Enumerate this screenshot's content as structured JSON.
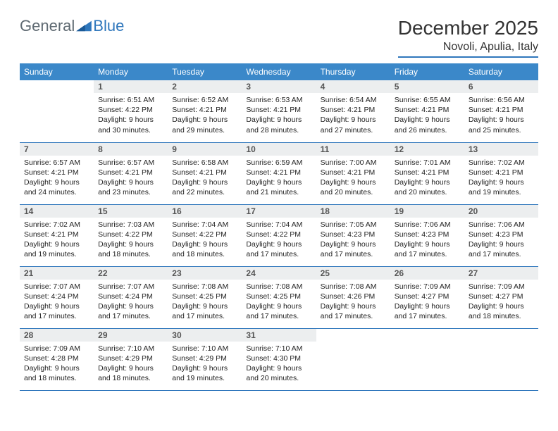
{
  "brand": {
    "part1": "General",
    "part2": "Blue"
  },
  "title": "December 2025",
  "location": "Novoli, Apulia, Italy",
  "colors": {
    "header_bg": "#3b88c9",
    "rule": "#2f77bc",
    "daynum_bg": "#eceeef",
    "text": "#222222",
    "title_color": "#333333",
    "brand_gray": "#5f6a72",
    "brand_blue": "#2f77bc"
  },
  "weekdays": [
    "Sunday",
    "Monday",
    "Tuesday",
    "Wednesday",
    "Thursday",
    "Friday",
    "Saturday"
  ],
  "layout": {
    "first_weekday_index": 1,
    "days_in_month": 31,
    "rows": 5,
    "cols": 7
  },
  "days": {
    "1": {
      "sunrise": "6:51 AM",
      "sunset": "4:22 PM",
      "daylight": "9 hours and 30 minutes."
    },
    "2": {
      "sunrise": "6:52 AM",
      "sunset": "4:21 PM",
      "daylight": "9 hours and 29 minutes."
    },
    "3": {
      "sunrise": "6:53 AM",
      "sunset": "4:21 PM",
      "daylight": "9 hours and 28 minutes."
    },
    "4": {
      "sunrise": "6:54 AM",
      "sunset": "4:21 PM",
      "daylight": "9 hours and 27 minutes."
    },
    "5": {
      "sunrise": "6:55 AM",
      "sunset": "4:21 PM",
      "daylight": "9 hours and 26 minutes."
    },
    "6": {
      "sunrise": "6:56 AM",
      "sunset": "4:21 PM",
      "daylight": "9 hours and 25 minutes."
    },
    "7": {
      "sunrise": "6:57 AM",
      "sunset": "4:21 PM",
      "daylight": "9 hours and 24 minutes."
    },
    "8": {
      "sunrise": "6:57 AM",
      "sunset": "4:21 PM",
      "daylight": "9 hours and 23 minutes."
    },
    "9": {
      "sunrise": "6:58 AM",
      "sunset": "4:21 PM",
      "daylight": "9 hours and 22 minutes."
    },
    "10": {
      "sunrise": "6:59 AM",
      "sunset": "4:21 PM",
      "daylight": "9 hours and 21 minutes."
    },
    "11": {
      "sunrise": "7:00 AM",
      "sunset": "4:21 PM",
      "daylight": "9 hours and 20 minutes."
    },
    "12": {
      "sunrise": "7:01 AM",
      "sunset": "4:21 PM",
      "daylight": "9 hours and 20 minutes."
    },
    "13": {
      "sunrise": "7:02 AM",
      "sunset": "4:21 PM",
      "daylight": "9 hours and 19 minutes."
    },
    "14": {
      "sunrise": "7:02 AM",
      "sunset": "4:21 PM",
      "daylight": "9 hours and 19 minutes."
    },
    "15": {
      "sunrise": "7:03 AM",
      "sunset": "4:22 PM",
      "daylight": "9 hours and 18 minutes."
    },
    "16": {
      "sunrise": "7:04 AM",
      "sunset": "4:22 PM",
      "daylight": "9 hours and 18 minutes."
    },
    "17": {
      "sunrise": "7:04 AM",
      "sunset": "4:22 PM",
      "daylight": "9 hours and 17 minutes."
    },
    "18": {
      "sunrise": "7:05 AM",
      "sunset": "4:23 PM",
      "daylight": "9 hours and 17 minutes."
    },
    "19": {
      "sunrise": "7:06 AM",
      "sunset": "4:23 PM",
      "daylight": "9 hours and 17 minutes."
    },
    "20": {
      "sunrise": "7:06 AM",
      "sunset": "4:23 PM",
      "daylight": "9 hours and 17 minutes."
    },
    "21": {
      "sunrise": "7:07 AM",
      "sunset": "4:24 PM",
      "daylight": "9 hours and 17 minutes."
    },
    "22": {
      "sunrise": "7:07 AM",
      "sunset": "4:24 PM",
      "daylight": "9 hours and 17 minutes."
    },
    "23": {
      "sunrise": "7:08 AM",
      "sunset": "4:25 PM",
      "daylight": "9 hours and 17 minutes."
    },
    "24": {
      "sunrise": "7:08 AM",
      "sunset": "4:25 PM",
      "daylight": "9 hours and 17 minutes."
    },
    "25": {
      "sunrise": "7:08 AM",
      "sunset": "4:26 PM",
      "daylight": "9 hours and 17 minutes."
    },
    "26": {
      "sunrise": "7:09 AM",
      "sunset": "4:27 PM",
      "daylight": "9 hours and 17 minutes."
    },
    "27": {
      "sunrise": "7:09 AM",
      "sunset": "4:27 PM",
      "daylight": "9 hours and 18 minutes."
    },
    "28": {
      "sunrise": "7:09 AM",
      "sunset": "4:28 PM",
      "daylight": "9 hours and 18 minutes."
    },
    "29": {
      "sunrise": "7:10 AM",
      "sunset": "4:29 PM",
      "daylight": "9 hours and 18 minutes."
    },
    "30": {
      "sunrise": "7:10 AM",
      "sunset": "4:29 PM",
      "daylight": "9 hours and 19 minutes."
    },
    "31": {
      "sunrise": "7:10 AM",
      "sunset": "4:30 PM",
      "daylight": "9 hours and 20 minutes."
    }
  },
  "labels": {
    "sunrise": "Sunrise: ",
    "sunset": "Sunset: ",
    "daylight": "Daylight: "
  }
}
